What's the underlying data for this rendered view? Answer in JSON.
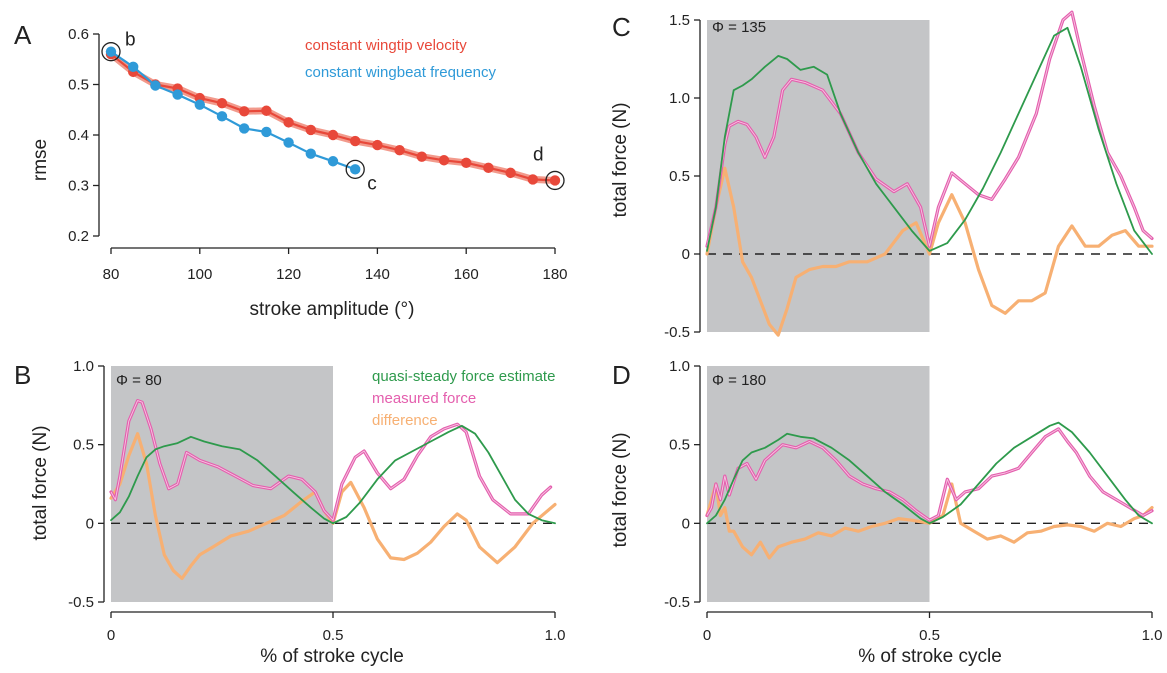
{
  "colors": {
    "red": "#e8483a",
    "red_light": "#f29a8c",
    "blue": "#2f9ad8",
    "green": "#2e9a4c",
    "pink": "#e45fae",
    "orange": "#f7b073",
    "shade": "#c4c5c7"
  },
  "chart_data": [
    {
      "panel": "A",
      "type": "line",
      "xlabel": "stroke amplitude (°)",
      "ylabel": "rmse",
      "xlim": [
        80,
        180
      ],
      "ylim": [
        0.2,
        0.6
      ],
      "xticks": [
        80,
        100,
        120,
        140,
        160,
        180
      ],
      "yticks": [
        0.2,
        0.3,
        0.4,
        0.5,
        0.6
      ],
      "series": [
        {
          "name": "constant wingtip velocity",
          "x": [
            80,
            85,
            90,
            95,
            100,
            105,
            110,
            115,
            120,
            125,
            130,
            135,
            140,
            145,
            150,
            155,
            160,
            165,
            170,
            175,
            180
          ],
          "y": [
            0.56,
            0.525,
            0.5,
            0.492,
            0.473,
            0.463,
            0.447,
            0.448,
            0.425,
            0.41,
            0.4,
            0.388,
            0.38,
            0.37,
            0.357,
            0.35,
            0.345,
            0.335,
            0.325,
            0.312,
            0.31
          ]
        },
        {
          "name": "constant wingbeat frequency",
          "x": [
            80,
            85,
            90,
            95,
            100,
            105,
            110,
            115,
            120,
            125,
            130,
            135
          ],
          "y": [
            0.565,
            0.535,
            0.498,
            0.48,
            0.46,
            0.437,
            0.413,
            0.406,
            0.385,
            0.363,
            0.348,
            0.332
          ]
        }
      ],
      "annotations": [
        {
          "label": "b",
          "x": 80,
          "y": 0.565
        },
        {
          "label": "c",
          "x": 135,
          "y": 0.332
        },
        {
          "label": "d",
          "x": 180,
          "y": 0.31
        }
      ]
    },
    {
      "panel": "B",
      "type": "line",
      "phi_label": "Φ = 80",
      "xlabel": "% of stroke cycle",
      "ylabel": "total force (N)",
      "xlim": [
        0,
        1
      ],
      "ylim": [
        -0.5,
        1.0
      ],
      "xticks": [
        "0",
        "0.5",
        "1.0"
      ],
      "yticks": [
        "-0.5",
        "0",
        "0.5",
        "1.0"
      ],
      "shaded": [
        0,
        0.5
      ],
      "series": [
        {
          "name": "quasi-steady force estimate",
          "x": [
            0,
            0.02,
            0.04,
            0.06,
            0.08,
            0.1,
            0.12,
            0.15,
            0.18,
            0.21,
            0.25,
            0.29,
            0.33,
            0.37,
            0.41,
            0.45,
            0.48,
            0.5,
            0.53,
            0.56,
            0.6,
            0.64,
            0.68,
            0.72,
            0.76,
            0.79,
            0.82,
            0.85,
            0.88,
            0.91,
            0.94,
            0.97,
            1.0
          ],
          "y": [
            0.02,
            0.07,
            0.17,
            0.3,
            0.42,
            0.47,
            0.49,
            0.51,
            0.55,
            0.52,
            0.49,
            0.47,
            0.4,
            0.3,
            0.2,
            0.1,
            0.03,
            0.0,
            0.04,
            0.13,
            0.28,
            0.4,
            0.46,
            0.52,
            0.58,
            0.62,
            0.57,
            0.45,
            0.3,
            0.15,
            0.06,
            0.02,
            0.0
          ]
        },
        {
          "name": "measured force",
          "x": [
            0,
            0.01,
            0.02,
            0.04,
            0.06,
            0.07,
            0.09,
            0.11,
            0.13,
            0.15,
            0.17,
            0.2,
            0.24,
            0.28,
            0.32,
            0.36,
            0.4,
            0.43,
            0.46,
            0.48,
            0.5,
            0.52,
            0.55,
            0.57,
            0.6,
            0.63,
            0.66,
            0.69,
            0.72,
            0.75,
            0.78,
            0.8,
            0.83,
            0.86,
            0.9,
            0.94,
            0.97,
            0.99
          ],
          "y": [
            0.2,
            0.15,
            0.3,
            0.65,
            0.78,
            0.77,
            0.6,
            0.38,
            0.22,
            0.25,
            0.45,
            0.4,
            0.36,
            0.3,
            0.24,
            0.22,
            0.3,
            0.28,
            0.2,
            0.08,
            0.02,
            0.25,
            0.42,
            0.46,
            0.32,
            0.22,
            0.28,
            0.43,
            0.55,
            0.6,
            0.63,
            0.58,
            0.3,
            0.15,
            0.06,
            0.06,
            0.18,
            0.23
          ]
        },
        {
          "name": "difference",
          "x": [
            0,
            0.02,
            0.04,
            0.06,
            0.08,
            0.1,
            0.12,
            0.14,
            0.16,
            0.18,
            0.2,
            0.23,
            0.27,
            0.31,
            0.35,
            0.39,
            0.43,
            0.46,
            0.48,
            0.5,
            0.52,
            0.54,
            0.57,
            0.6,
            0.63,
            0.66,
            0.69,
            0.72,
            0.75,
            0.78,
            0.8,
            0.83,
            0.87,
            0.91,
            0.95,
            1.0
          ],
          "y": [
            0.16,
            0.25,
            0.43,
            0.57,
            0.38,
            0.05,
            -0.2,
            -0.3,
            -0.35,
            -0.27,
            -0.2,
            -0.15,
            -0.08,
            -0.05,
            0.0,
            0.05,
            0.14,
            0.2,
            0.08,
            0.0,
            0.2,
            0.26,
            0.1,
            -0.1,
            -0.22,
            -0.23,
            -0.19,
            -0.12,
            -0.02,
            0.06,
            0.02,
            -0.15,
            -0.25,
            -0.15,
            0.0,
            0.12
          ]
        }
      ],
      "legend": [
        "quasi-steady force estimate",
        "measured force",
        "difference"
      ]
    },
    {
      "panel": "C",
      "type": "line",
      "phi_label": "Φ = 135",
      "xlabel": "",
      "ylabel": "total force (N)",
      "xlim": [
        0,
        1
      ],
      "ylim": [
        -0.5,
        1.5
      ],
      "xticks": [],
      "yticks": [
        "-0.5",
        "0",
        "0.5",
        "1.0",
        "1.5"
      ],
      "shaded": [
        0,
        0.5
      ],
      "series": [
        {
          "name": "quasi-steady force estimate",
          "x": [
            0,
            0.02,
            0.04,
            0.06,
            0.08,
            0.1,
            0.13,
            0.16,
            0.18,
            0.21,
            0.24,
            0.27,
            0.3,
            0.34,
            0.38,
            0.42,
            0.46,
            0.5,
            0.54,
            0.58,
            0.62,
            0.66,
            0.7,
            0.74,
            0.78,
            0.81,
            0.84,
            0.88,
            0.92,
            0.96,
            1.0
          ],
          "y": [
            0.02,
            0.3,
            0.75,
            1.05,
            1.08,
            1.12,
            1.2,
            1.27,
            1.25,
            1.18,
            1.2,
            1.15,
            0.9,
            0.65,
            0.45,
            0.3,
            0.15,
            0.02,
            0.07,
            0.22,
            0.42,
            0.65,
            0.9,
            1.15,
            1.4,
            1.45,
            1.2,
            0.8,
            0.45,
            0.15,
            0.0
          ]
        },
        {
          "name": "measured force",
          "x": [
            0,
            0.02,
            0.04,
            0.05,
            0.07,
            0.09,
            0.11,
            0.13,
            0.15,
            0.17,
            0.19,
            0.22,
            0.26,
            0.3,
            0.34,
            0.38,
            0.42,
            0.45,
            0.48,
            0.5,
            0.52,
            0.55,
            0.58,
            0.61,
            0.64,
            0.67,
            0.7,
            0.74,
            0.77,
            0.8,
            0.82,
            0.84,
            0.87,
            0.9,
            0.93,
            0.96,
            0.98,
            1.0
          ],
          "y": [
            0.05,
            0.3,
            0.7,
            0.82,
            0.85,
            0.83,
            0.75,
            0.62,
            0.75,
            1.05,
            1.12,
            1.1,
            1.05,
            0.9,
            0.65,
            0.48,
            0.4,
            0.45,
            0.3,
            0.05,
            0.3,
            0.52,
            0.45,
            0.38,
            0.35,
            0.48,
            0.62,
            0.9,
            1.25,
            1.5,
            1.55,
            1.3,
            0.95,
            0.65,
            0.5,
            0.3,
            0.15,
            0.1
          ]
        },
        {
          "name": "difference",
          "x": [
            0,
            0.02,
            0.04,
            0.06,
            0.08,
            0.1,
            0.12,
            0.14,
            0.16,
            0.18,
            0.2,
            0.23,
            0.26,
            0.29,
            0.32,
            0.36,
            0.4,
            0.44,
            0.47,
            0.5,
            0.52,
            0.55,
            0.58,
            0.61,
            0.64,
            0.67,
            0.7,
            0.73,
            0.76,
            0.79,
            0.82,
            0.85,
            0.88,
            0.91,
            0.94,
            0.97,
            1.0
          ],
          "y": [
            0.0,
            0.3,
            0.55,
            0.3,
            -0.05,
            -0.15,
            -0.3,
            -0.45,
            -0.52,
            -0.35,
            -0.15,
            -0.1,
            -0.08,
            -0.08,
            -0.05,
            -0.05,
            0.0,
            0.15,
            0.2,
            0.0,
            0.2,
            0.38,
            0.2,
            -0.1,
            -0.33,
            -0.38,
            -0.3,
            -0.3,
            -0.25,
            0.05,
            0.18,
            0.05,
            0.05,
            0.12,
            0.15,
            0.05,
            0.05
          ]
        }
      ]
    },
    {
      "panel": "D",
      "type": "line",
      "phi_label": "Φ = 180",
      "xlabel": "% of stroke cycle",
      "ylabel": "total force (N)",
      "xlim": [
        0,
        1
      ],
      "ylim": [
        -0.5,
        1.0
      ],
      "xticks": [
        "0",
        "0.5",
        "1.0"
      ],
      "yticks": [
        "-0.5",
        "0",
        "0.5",
        "1.0"
      ],
      "shaded": [
        0,
        0.5
      ],
      "series": [
        {
          "name": "quasi-steady force estimate",
          "x": [
            0,
            0.02,
            0.04,
            0.06,
            0.08,
            0.1,
            0.13,
            0.16,
            0.18,
            0.21,
            0.24,
            0.28,
            0.32,
            0.36,
            0.4,
            0.44,
            0.48,
            0.5,
            0.53,
            0.57,
            0.61,
            0.65,
            0.69,
            0.73,
            0.77,
            0.79,
            0.82,
            0.86,
            0.9,
            0.94,
            0.97,
            1.0
          ],
          "y": [
            0.0,
            0.05,
            0.15,
            0.28,
            0.4,
            0.45,
            0.48,
            0.53,
            0.57,
            0.55,
            0.54,
            0.48,
            0.4,
            0.3,
            0.2,
            0.12,
            0.03,
            0.0,
            0.04,
            0.12,
            0.25,
            0.38,
            0.48,
            0.55,
            0.62,
            0.64,
            0.58,
            0.45,
            0.3,
            0.15,
            0.05,
            0.0
          ]
        },
        {
          "name": "measured force",
          "x": [
            0,
            0.01,
            0.02,
            0.03,
            0.04,
            0.05,
            0.07,
            0.09,
            0.11,
            0.13,
            0.15,
            0.17,
            0.2,
            0.23,
            0.26,
            0.29,
            0.32,
            0.35,
            0.38,
            0.41,
            0.44,
            0.47,
            0.5,
            0.52,
            0.54,
            0.56,
            0.58,
            0.61,
            0.64,
            0.67,
            0.7,
            0.73,
            0.76,
            0.79,
            0.81,
            0.83,
            0.86,
            0.89,
            0.92,
            0.95,
            0.98,
            1.0
          ],
          "y": [
            0.05,
            0.1,
            0.25,
            0.15,
            0.3,
            0.18,
            0.35,
            0.38,
            0.28,
            0.4,
            0.45,
            0.5,
            0.48,
            0.52,
            0.48,
            0.4,
            0.3,
            0.25,
            0.22,
            0.2,
            0.15,
            0.08,
            0.02,
            0.05,
            0.28,
            0.15,
            0.2,
            0.22,
            0.3,
            0.32,
            0.35,
            0.45,
            0.55,
            0.6,
            0.52,
            0.45,
            0.3,
            0.2,
            0.15,
            0.1,
            0.05,
            0.08
          ]
        },
        {
          "name": "difference",
          "x": [
            0,
            0.01,
            0.02,
            0.03,
            0.04,
            0.05,
            0.06,
            0.08,
            0.1,
            0.12,
            0.14,
            0.16,
            0.19,
            0.22,
            0.25,
            0.28,
            0.31,
            0.34,
            0.37,
            0.4,
            0.43,
            0.46,
            0.5,
            0.53,
            0.55,
            0.57,
            0.6,
            0.63,
            0.66,
            0.69,
            0.72,
            0.75,
            0.78,
            0.81,
            0.84,
            0.87,
            0.9,
            0.93,
            0.96,
            0.98,
            1.0
          ],
          "y": [
            0.05,
            0.15,
            0.25,
            0.05,
            0.1,
            -0.05,
            -0.05,
            -0.15,
            -0.2,
            -0.12,
            -0.22,
            -0.15,
            -0.12,
            -0.1,
            -0.06,
            -0.08,
            -0.03,
            -0.05,
            -0.02,
            0.0,
            0.03,
            0.02,
            0.0,
            0.05,
            0.25,
            0.0,
            -0.05,
            -0.1,
            -0.08,
            -0.12,
            -0.06,
            -0.05,
            -0.02,
            -0.01,
            -0.02,
            -0.05,
            0.0,
            -0.02,
            0.03,
            0.05,
            0.1
          ]
        }
      ]
    }
  ]
}
